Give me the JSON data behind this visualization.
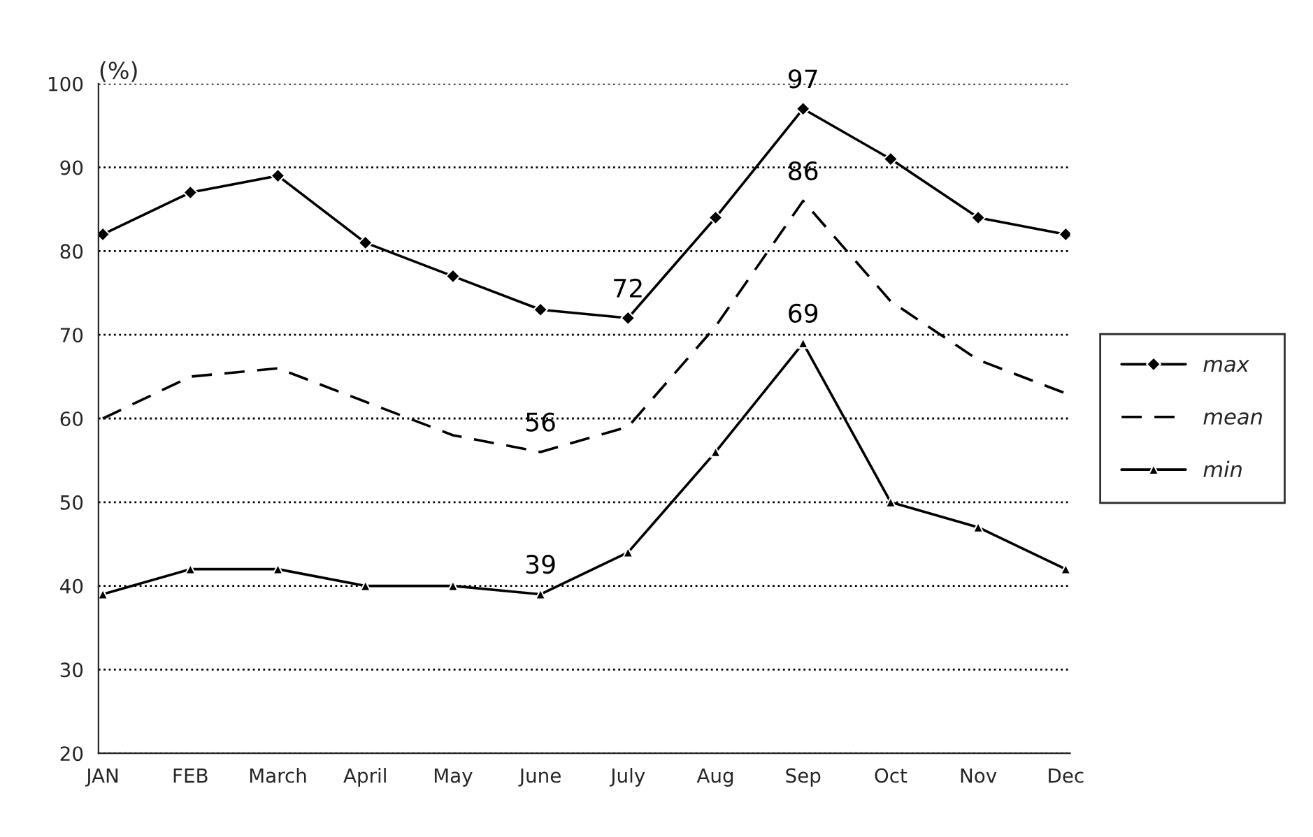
{
  "chart_data": {
    "type": "line",
    "ylabel": "(%)",
    "categories": [
      "JAN",
      "FEB",
      "March",
      "April",
      "May",
      "June",
      "July",
      "Aug",
      "Sep",
      "Oct",
      "Nov",
      "Dec"
    ],
    "series": [
      {
        "name": "max",
        "color": "#000000",
        "marker": "diamond",
        "line_style": "solid",
        "values": [
          82,
          87,
          89,
          81,
          77,
          73,
          72,
          84,
          97,
          91,
          84,
          82
        ],
        "value_labels": [
          null,
          null,
          null,
          null,
          null,
          null,
          "72",
          null,
          "97",
          null,
          null,
          null
        ]
      },
      {
        "name": "mean",
        "color": "#000000",
        "marker": "none",
        "line_style": "dashed",
        "values": [
          60,
          65,
          66,
          62,
          58,
          56,
          59,
          71,
          86,
          74,
          67,
          63
        ],
        "value_labels": [
          null,
          null,
          null,
          null,
          null,
          "56",
          null,
          null,
          "86",
          null,
          null,
          null
        ]
      },
      {
        "name": "min",
        "color": "#000000",
        "marker": "triangle",
        "line_style": "solid",
        "values": [
          39,
          42,
          42,
          40,
          40,
          39,
          44,
          56,
          69,
          50,
          47,
          42
        ],
        "value_labels": [
          null,
          null,
          null,
          null,
          null,
          "39",
          null,
          null,
          "69",
          null,
          null,
          null
        ]
      }
    ],
    "ylim": [
      20,
      100
    ],
    "yticks": [
      20,
      30,
      40,
      50,
      60,
      70,
      80,
      90,
      100
    ],
    "grid": "y",
    "legend": "right"
  }
}
